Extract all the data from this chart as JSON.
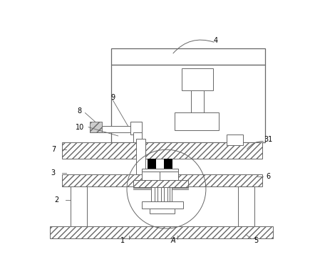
{
  "bg_color": "#ffffff",
  "line_color": "#666666",
  "fig_width": 4.42,
  "fig_height": 3.85,
  "dpi": 100
}
